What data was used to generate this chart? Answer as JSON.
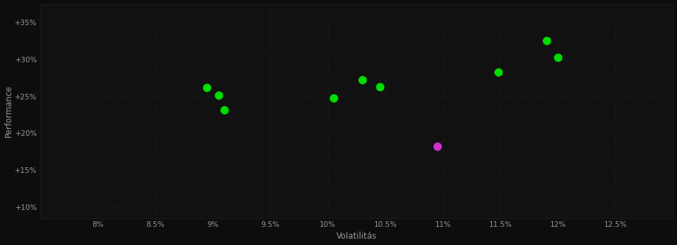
{
  "background_color": "#0d0d0d",
  "plot_bg_color": "#111111",
  "grid_color": "#2a2a2a",
  "text_color": "#999999",
  "xlabel": "Volatilitás",
  "ylabel": "Performance",
  "xlim": [
    0.075,
    0.13
  ],
  "ylim": [
    0.085,
    0.375
  ],
  "xticks": [
    0.08,
    0.085,
    0.09,
    0.095,
    0.1,
    0.105,
    0.11,
    0.115,
    0.12,
    0.125
  ],
  "yticks": [
    0.1,
    0.15,
    0.2,
    0.25,
    0.3,
    0.35
  ],
  "green_points": [
    [
      0.0895,
      0.262
    ],
    [
      0.0905,
      0.251
    ],
    [
      0.091,
      0.232
    ],
    [
      0.1005,
      0.248
    ],
    [
      0.103,
      0.272
    ],
    [
      0.1045,
      0.263
    ],
    [
      0.1148,
      0.283
    ],
    [
      0.119,
      0.325
    ],
    [
      0.12,
      0.303
    ]
  ],
  "magenta_points": [
    [
      0.1095,
      0.182
    ]
  ],
  "green_color": "#00dd00",
  "magenta_color": "#cc33cc",
  "marker_size": 5
}
